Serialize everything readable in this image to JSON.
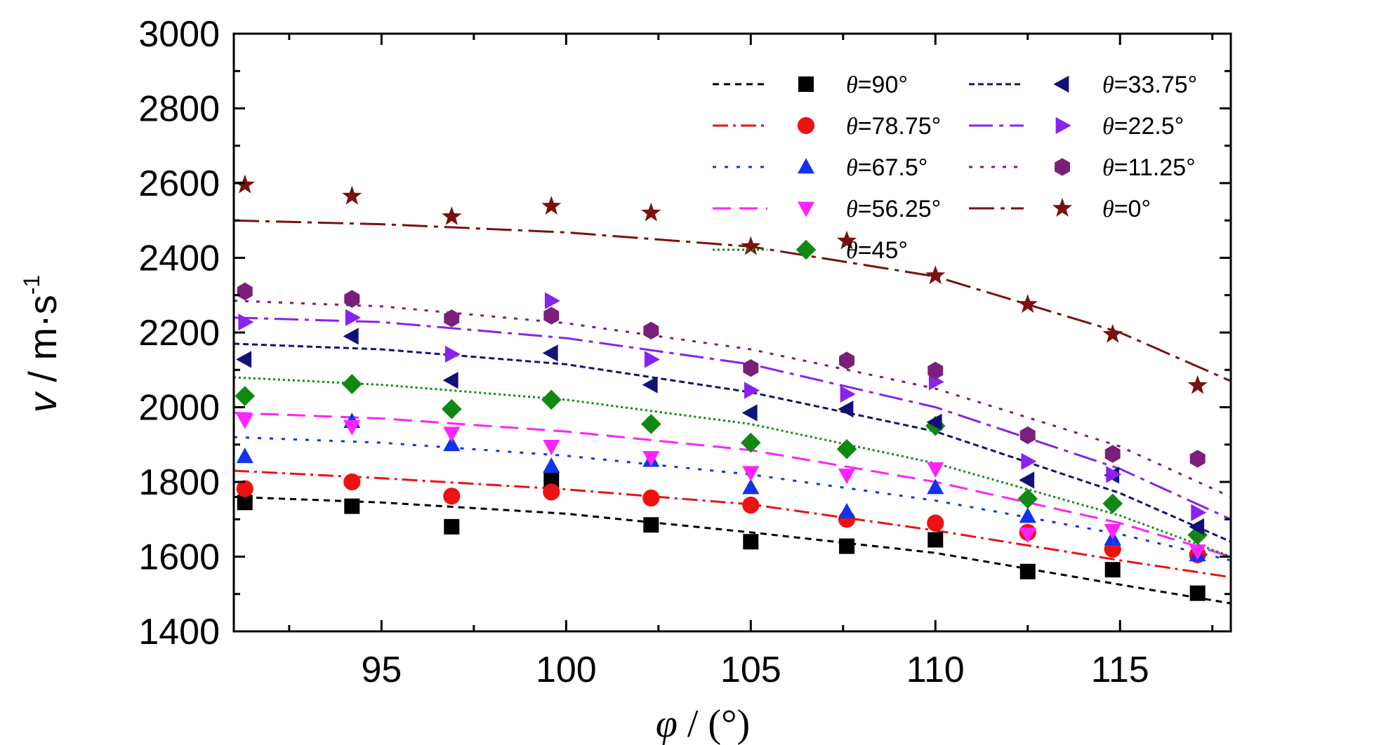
{
  "chart_data": {
    "type": "scatter",
    "xlabel_symbol": "φ",
    "xlabel_unit": " / (°)",
    "ylabel_symbol": "v",
    "ylabel_unit": " / m·s",
    "ylabel_exp": "-1",
    "xlim": [
      91,
      118
    ],
    "ylim": [
      1400,
      3000
    ],
    "xticks": [
      95,
      100,
      105,
      110,
      115
    ],
    "yticks": [
      1400,
      1600,
      1800,
      2000,
      2200,
      2400,
      2600,
      2800,
      3000
    ],
    "grid": false,
    "legend_position": "top-right",
    "x": [
      91.3,
      94.2,
      96.9,
      99.6,
      102.3,
      105.0,
      107.6,
      110.0,
      112.5,
      114.8,
      117.1
    ],
    "series": [
      {
        "name": "=90°",
        "color": "#000000",
        "marker": "square",
        "dash": "9,7",
        "values": [
          1745,
          1735,
          1680,
          1805,
          1685,
          1640,
          1628,
          1645,
          1560,
          1565,
          1502
        ],
        "fit": [
          [
            91,
            1760
          ],
          [
            95,
            1745
          ],
          [
            100,
            1715
          ],
          [
            105,
            1665
          ],
          [
            110,
            1610
          ],
          [
            115,
            1525
          ],
          [
            118,
            1475
          ]
        ]
      },
      {
        "name": "=78.75°",
        "color": "#ee1111",
        "marker": "circle",
        "dash": "22,7,4,7",
        "values": [
          1782,
          1800,
          1762,
          1773,
          1757,
          1738,
          1700,
          1690,
          1665,
          1620,
          1605
        ],
        "fit": [
          [
            91,
            1830
          ],
          [
            95,
            1810
          ],
          [
            100,
            1780
          ],
          [
            105,
            1740
          ],
          [
            110,
            1670
          ],
          [
            115,
            1590
          ],
          [
            118,
            1545
          ]
        ]
      },
      {
        "name": "=67.5°",
        "color": "#1133ee",
        "marker": "triangle-up",
        "dash": "5,12",
        "values": [
          1868,
          1962,
          1900,
          1842,
          1858,
          1785,
          1720,
          1785,
          1708,
          1648,
          1605
        ],
        "fit": [
          [
            91,
            1920
          ],
          [
            95,
            1905
          ],
          [
            100,
            1870
          ],
          [
            105,
            1820
          ],
          [
            110,
            1750
          ],
          [
            115,
            1660
          ],
          [
            118,
            1590
          ]
        ]
      },
      {
        "name": "=56.25°",
        "color": "#ff22ff",
        "marker": "triangle-down",
        "dash": "26,12",
        "values": [
          1965,
          1948,
          1930,
          1895,
          1865,
          1825,
          1818,
          1835,
          1660,
          1670,
          1615
        ],
        "fit": [
          [
            91,
            1985
          ],
          [
            95,
            1970
          ],
          [
            100,
            1935
          ],
          [
            105,
            1885
          ],
          [
            110,
            1800
          ],
          [
            115,
            1690
          ],
          [
            118,
            1600
          ]
        ]
      },
      {
        "name": "=45°",
        "color": "#118811",
        "marker": "diamond",
        "dash": "3,4",
        "values": [
          2030,
          2062,
          1995,
          2020,
          1955,
          1905,
          1888,
          1950,
          1755,
          1742,
          1658
        ],
        "fit": [
          [
            91,
            2080
          ],
          [
            95,
            2060
          ],
          [
            100,
            2020
          ],
          [
            105,
            1955
          ],
          [
            110,
            1850
          ],
          [
            115,
            1710
          ],
          [
            118,
            1600
          ]
        ]
      },
      {
        "name": "=33.75°",
        "color": "#111177",
        "marker": "triangle-left",
        "dash": "8,5",
        "values": [
          2128,
          2190,
          2072,
          2145,
          2060,
          1985,
          1995,
          1960,
          1805,
          1818,
          1680
        ],
        "fit": [
          [
            91,
            2170
          ],
          [
            95,
            2155
          ],
          [
            100,
            2115
          ],
          [
            105,
            2040
          ],
          [
            110,
            1935
          ],
          [
            115,
            1770
          ],
          [
            118,
            1640
          ]
        ]
      },
      {
        "name": "=22.5°",
        "color": "#8822ee",
        "marker": "triangle-right",
        "dash": "34,9,6,9",
        "values": [
          2228,
          2240,
          2142,
          2285,
          2128,
          2045,
          2035,
          2068,
          1855,
          1820,
          1718
        ],
        "fit": [
          [
            91,
            2240
          ],
          [
            95,
            2228
          ],
          [
            100,
            2185
          ],
          [
            105,
            2115
          ],
          [
            110,
            2000
          ],
          [
            115,
            1835
          ],
          [
            118,
            1700
          ]
        ]
      },
      {
        "name": "=11.25°",
        "color": "#7a1f7a",
        "marker": "hexagon",
        "dash": "5,11",
        "values": [
          2310,
          2290,
          2238,
          2245,
          2205,
          2105,
          2125,
          2098,
          1925,
          1875,
          1862
        ],
        "fit": [
          [
            91,
            2285
          ],
          [
            95,
            2270
          ],
          [
            100,
            2225
          ],
          [
            105,
            2155
          ],
          [
            110,
            2050
          ],
          [
            115,
            1895
          ],
          [
            118,
            1760
          ]
        ]
      },
      {
        "name": "=0°",
        "color": "#7a1111",
        "marker": "star",
        "dash": "36,9,6,9",
        "values": [
          2595,
          2565,
          2510,
          2538,
          2520,
          2430,
          2445,
          2352,
          2275,
          2195,
          2058
        ],
        "fit": [
          [
            91,
            2500
          ],
          [
            95,
            2490
          ],
          [
            100,
            2468
          ],
          [
            105,
            2430
          ],
          [
            110,
            2350
          ],
          [
            115,
            2200
          ],
          [
            118,
            2070
          ]
        ]
      }
    ]
  },
  "legend": {
    "theta_symbol": "θ"
  },
  "colors": {
    "axis": "#000000",
    "background": "#ffffff"
  }
}
